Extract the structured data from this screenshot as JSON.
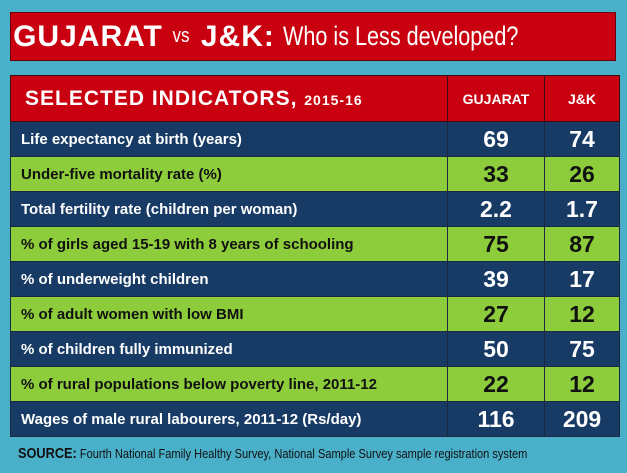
{
  "title": {
    "part1": "GUJARAT",
    "vs": "vs",
    "part2": "J&K:",
    "question": "Who is Less developed?"
  },
  "header": {
    "indicators": "SELECTED INDICATORS,",
    "year": "2015-16",
    "col1": "GUJARAT",
    "col2": "J&K"
  },
  "rows": [
    {
      "label": "Life expectancy at birth (years)",
      "gujarat": "69",
      "jk": "74"
    },
    {
      "label": "Under-five mortality rate (%)",
      "gujarat": "33",
      "jk": "26"
    },
    {
      "label": "Total fertility rate (children per woman)",
      "gujarat": "2.2",
      "jk": "1.7"
    },
    {
      "label": "% of girls aged 15-19 with 8 years of schooling",
      "gujarat": "75",
      "jk": "87"
    },
    {
      "label": "% of underweight children",
      "gujarat": "39",
      "jk": "17"
    },
    {
      "label": "% of adult women with low BMI",
      "gujarat": "27",
      "jk": "12"
    },
    {
      "label": "% of children fully immunized",
      "gujarat": "50",
      "jk": "75"
    },
    {
      "label": "% of rural populations below poverty line, 2011-12",
      "gujarat": "22",
      "jk": "12"
    },
    {
      "label": "Wages of male rural labourers, 2011-12 (Rs/day)",
      "gujarat": "116",
      "jk": "209"
    }
  ],
  "source": {
    "label": "SOURCE:",
    "text": "Fourth National Family Healthy Survey, National Sample Survey sample registration system"
  },
  "colors": {
    "background": "#4ab0c9",
    "red": "#c8000f",
    "navy": "#173b65",
    "green": "#8dcc3a"
  }
}
